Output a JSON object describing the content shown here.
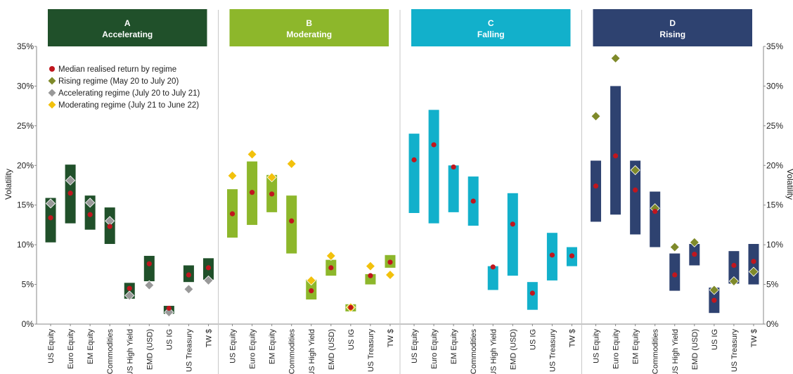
{
  "chart_data": {
    "type": "range-bar-with-markers",
    "ylabel": "Volatility",
    "y2label": "Volatility",
    "ylim": [
      0,
      35
    ],
    "yticks": [
      "0%",
      "5%",
      "10%",
      "15%",
      "20%",
      "25%",
      "30%",
      "35%"
    ],
    "categories": [
      "US Equity",
      "Euro Equity",
      "EM Equity",
      "Commodities",
      "US High Yield",
      "EMD (USD)",
      "US IG",
      "US Treasury",
      "TW $"
    ],
    "legend": {
      "placement": "top-left",
      "items": [
        {
          "label": "Median realised return by regime",
          "marker": "circle",
          "color": "#c0161e"
        },
        {
          "label": "Rising regime (May 20 to July 20)",
          "marker": "diamond",
          "color": "#7f8a2a"
        },
        {
          "label": "Accelerating regime (July 20 to July 21)",
          "marker": "diamond",
          "color": "#999999"
        },
        {
          "label": "Moderating regime (July 21 to June 22)",
          "marker": "diamond",
          "color": "#f2c10c"
        }
      ]
    },
    "panels": [
      {
        "letter": "A",
        "name": "Accelerating",
        "color": "#20502a",
        "ranges": [
          [
            10.3,
            15.9
          ],
          [
            12.7,
            20.1
          ],
          [
            11.9,
            16.2
          ],
          [
            10.1,
            14.7
          ],
          [
            3.2,
            5.2
          ],
          [
            5.4,
            8.6
          ],
          [
            1.3,
            2.3
          ],
          [
            5.3,
            7.4
          ],
          [
            5.6,
            8.3
          ]
        ],
        "median": [
          13.4,
          16.5,
          13.8,
          12.3,
          4.5,
          7.6,
          2.0,
          6.2,
          7.1
        ],
        "diamonds": {
          "color": "#999999",
          "values": [
            15.2,
            18.1,
            15.3,
            13.0,
            3.6,
            4.9,
            1.5,
            4.4,
            5.5
          ]
        }
      },
      {
        "letter": "B",
        "name": "Moderating",
        "color": "#8db72b",
        "ranges": [
          [
            10.9,
            17.0
          ],
          [
            12.5,
            20.5
          ],
          [
            14.1,
            18.8
          ],
          [
            8.9,
            16.2
          ],
          [
            3.1,
            5.6
          ],
          [
            6.1,
            8.1
          ],
          [
            1.6,
            2.5
          ],
          [
            5.0,
            6.3
          ],
          [
            7.1,
            8.7
          ]
        ],
        "median": [
          13.9,
          16.6,
          16.4,
          13.0,
          4.2,
          7.1,
          2.1,
          6.1,
          7.8
        ],
        "diamonds": {
          "color": "#f2c10c",
          "values": [
            18.7,
            21.4,
            18.5,
            20.2,
            5.5,
            8.6,
            2.1,
            7.3,
            6.2
          ]
        }
      },
      {
        "letter": "C",
        "name": "Falling",
        "color": "#12b0cb",
        "ranges": [
          [
            14.0,
            24.0
          ],
          [
            12.7,
            27.0
          ],
          [
            14.1,
            20.0
          ],
          [
            12.4,
            18.6
          ],
          [
            4.3,
            7.3
          ],
          [
            6.1,
            16.5
          ],
          [
            1.8,
            5.3
          ],
          [
            5.5,
            11.5
          ],
          [
            7.3,
            9.7
          ]
        ],
        "median": [
          20.7,
          22.6,
          19.8,
          15.5,
          7.2,
          12.6,
          3.9,
          8.7,
          8.6
        ],
        "diamonds": null
      },
      {
        "letter": "D",
        "name": "Rising",
        "color": "#2e4270",
        "ranges": [
          [
            12.9,
            20.6
          ],
          [
            13.8,
            30.0
          ],
          [
            11.3,
            20.6
          ],
          [
            9.7,
            16.7
          ],
          [
            4.2,
            8.9
          ],
          [
            7.4,
            10.1
          ],
          [
            1.4,
            4.6
          ],
          [
            5.1,
            9.2
          ],
          [
            5.0,
            10.1
          ]
        ],
        "median": [
          17.4,
          21.2,
          16.9,
          14.2,
          6.2,
          8.8,
          3.0,
          7.4,
          7.9
        ],
        "diamonds": {
          "color": "#7f8a2a",
          "values": [
            26.2,
            33.5,
            19.4,
            14.6,
            9.7,
            10.3,
            4.3,
            5.4,
            6.6
          ]
        }
      }
    ]
  }
}
